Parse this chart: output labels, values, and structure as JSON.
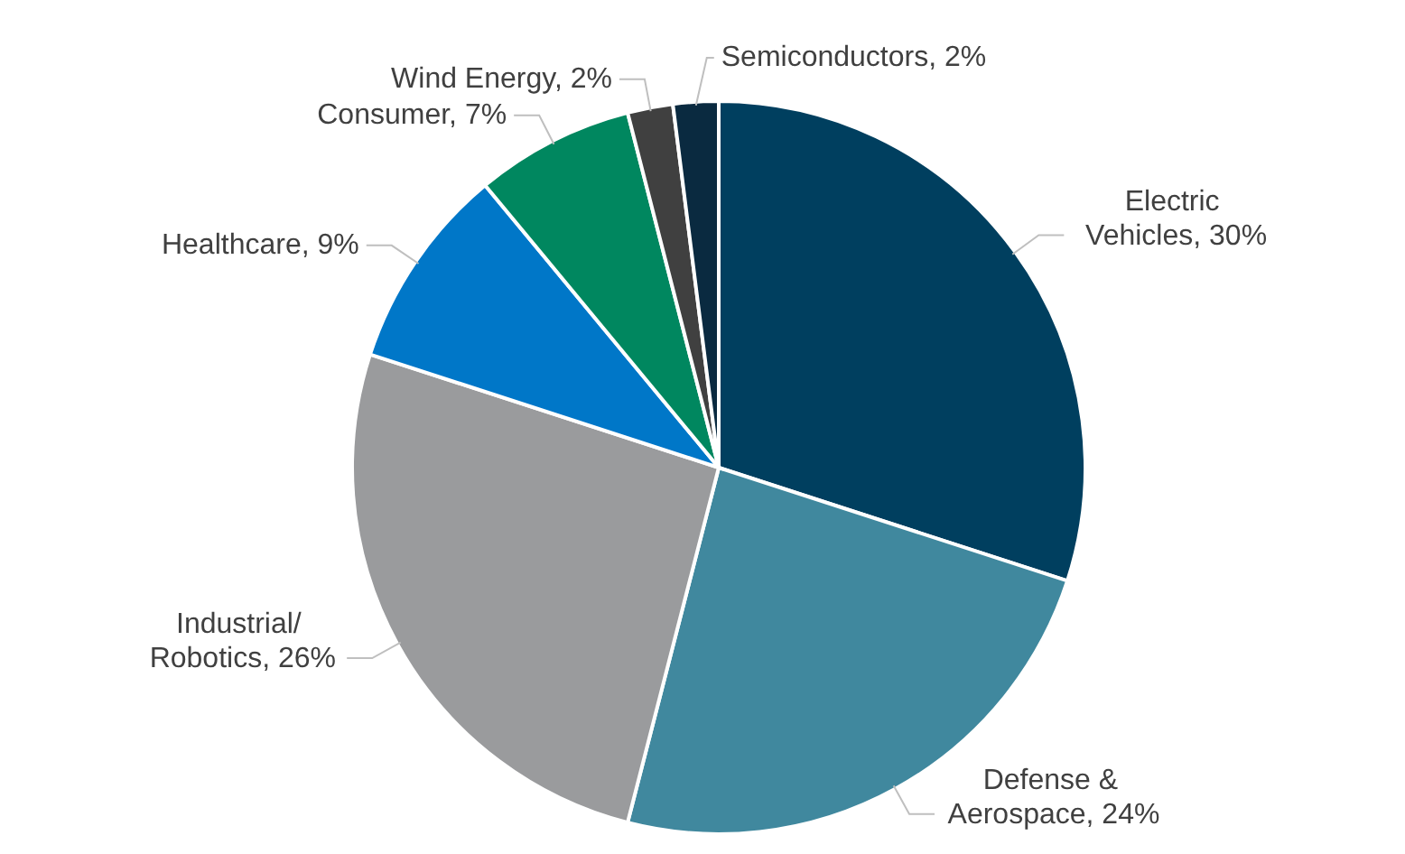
{
  "chart_data": {
    "type": "pie",
    "categories": [
      "Electric Vehicles",
      "Defense & Aerospace",
      "Industrial/Robotics",
      "Healthcare",
      "Consumer",
      "Wind Energy",
      "Semiconductors"
    ],
    "values": [
      30,
      24,
      26,
      9,
      7,
      2,
      2
    ],
    "value_labels": [
      "30%",
      "24%",
      "26%",
      "9%",
      "7%",
      "2%",
      "2%"
    ],
    "colors": [
      "#003f5f",
      "#40889e",
      "#9a9b9d",
      "#0077c8",
      "#00875f",
      "#404040",
      "#0a2a40"
    ],
    "legend": false
  }
}
